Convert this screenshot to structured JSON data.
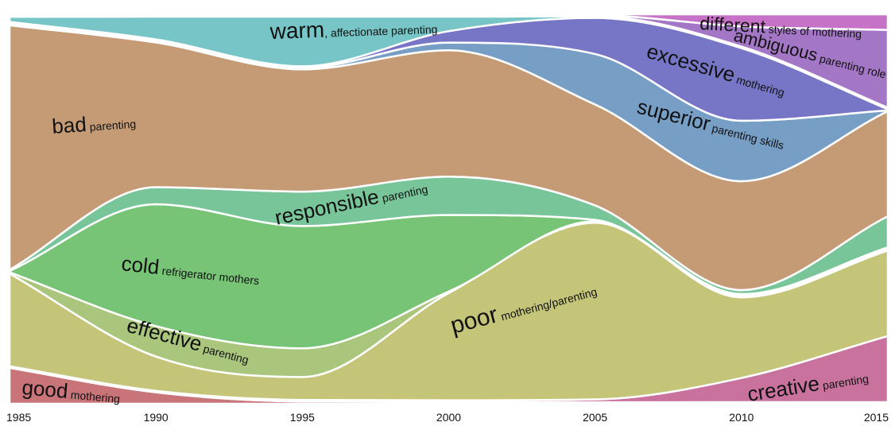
{
  "chart_data": {
    "type": "area",
    "subtype": "streamgraph",
    "x": [
      1985,
      1990,
      1995,
      2000,
      2005,
      2010,
      2015
    ],
    "xlim": [
      1985,
      2015
    ],
    "grid": false,
    "legend": "none",
    "series": [
      {
        "key": "good",
        "word": "good",
        "phrase": "mothering",
        "color": "#c97479",
        "values": [
          0.085,
          0.03,
          0.006,
          0.005,
          0.004,
          0.004,
          0.004
        ]
      },
      {
        "key": "creative",
        "word": "creative",
        "phrase": "parenting",
        "color": "#c9729d",
        "values": [
          0.004,
          0.004,
          0.004,
          0.004,
          0.008,
          0.06,
          0.17
        ]
      },
      {
        "key": "poor",
        "word": "poor",
        "phrase": "mothering/parenting",
        "color": "#c5c579",
        "values": [
          0.22,
          0.09,
          0.06,
          0.28,
          0.49,
          0.2,
          0.22
        ]
      },
      {
        "key": "effective",
        "word": "effective",
        "phrase": "parenting",
        "color": "#a9c67c",
        "values": [
          0.003,
          0.08,
          0.075,
          0.004,
          0.004,
          0.004,
          0.004
        ]
      },
      {
        "key": "cold",
        "word": "cold",
        "phrase": "refrigerator mothers",
        "color": "#77c477",
        "values": [
          0.003,
          0.32,
          0.32,
          0.2,
          0.004,
          0.004,
          0.004
        ]
      },
      {
        "key": "responsible",
        "word": "responsible",
        "phrase": "parenting",
        "color": "#78c59a",
        "values": [
          0.003,
          0.045,
          0.09,
          0.1,
          0.04,
          0.01,
          0.08
        ]
      },
      {
        "key": "bad",
        "word": "bad",
        "phrase": "parenting",
        "color": "#c59b75",
        "values": [
          0.58,
          0.38,
          0.32,
          0.33,
          0.28,
          0.27,
          0.27
        ]
      },
      {
        "key": "superior",
        "word": "superior",
        "phrase": "parenting skills",
        "color": "#779ec5",
        "values": [
          0.004,
          0.004,
          0.004,
          0.02,
          0.14,
          0.15,
          0.002
        ]
      },
      {
        "key": "excessive",
        "word": "excessive",
        "phrase": "mothering",
        "color": "#7776c6",
        "values": [
          0.004,
          0.004,
          0.004,
          0.03,
          0.1,
          0.18,
          0.003
        ]
      },
      {
        "key": "warm",
        "word": "warm",
        "phrase": ", affectionate parenting",
        "color": "#77c5c6",
        "values": [
          0.012,
          0.06,
          0.13,
          0.038,
          0.004,
          0.004,
          0.004
        ]
      },
      {
        "key": "ambiguous",
        "word": "ambiguous",
        "phrase": "parenting role",
        "color": "#a477c6",
        "values": [
          0.003,
          0.003,
          0.003,
          0.003,
          0.003,
          0.05,
          0.2
        ]
      },
      {
        "key": "different",
        "word": "different",
        "phrase": "styles of mothering",
        "color": "#c672c6",
        "values": [
          0.003,
          0.003,
          0.003,
          0.003,
          0.003,
          0.03,
          0.04
        ]
      }
    ]
  }
}
